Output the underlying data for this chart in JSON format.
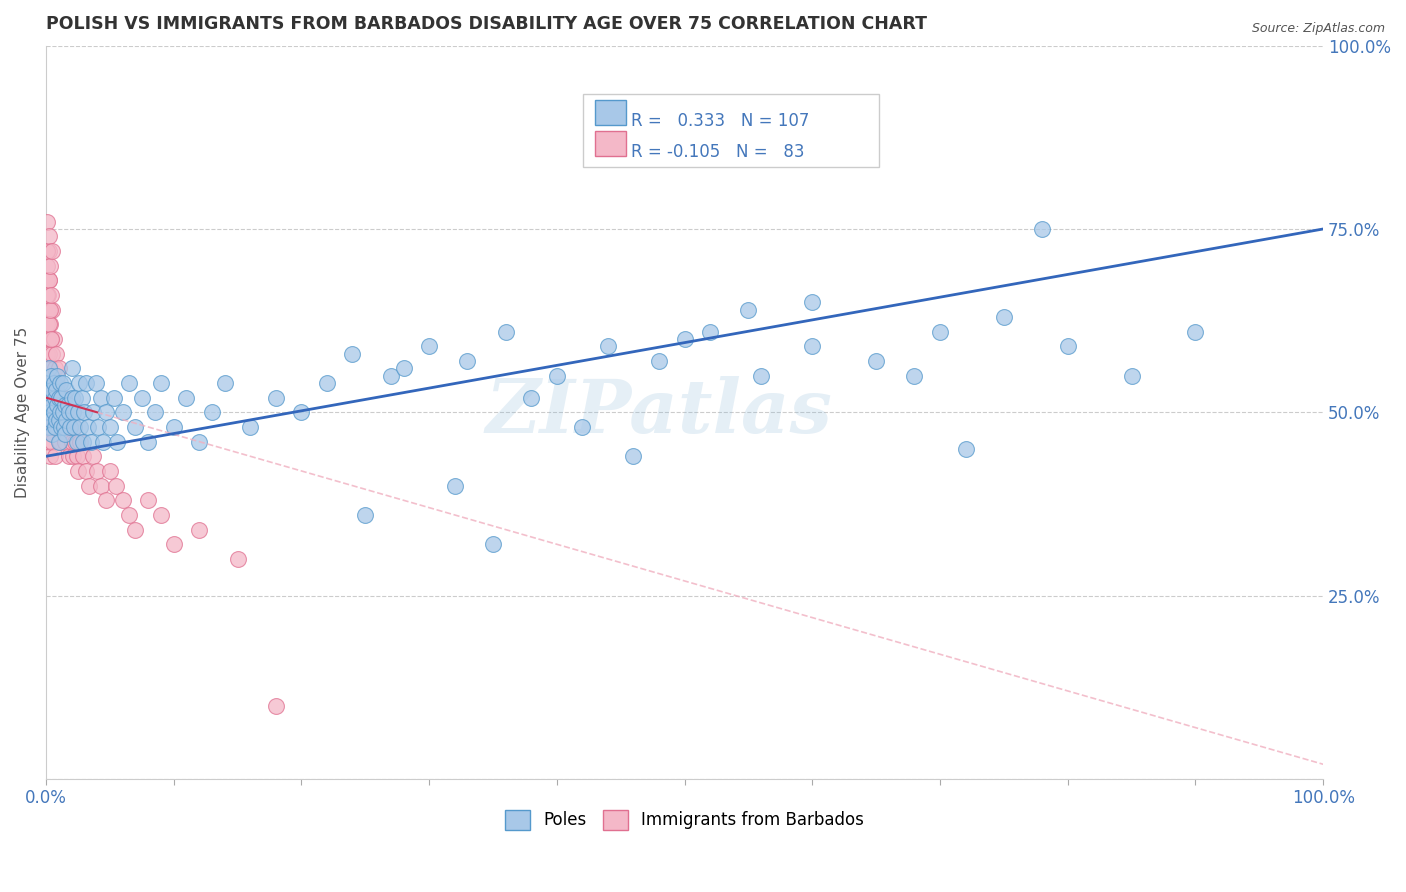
{
  "title": "POLISH VS IMMIGRANTS FROM BARBADOS DISABILITY AGE OVER 75 CORRELATION CHART",
  "source": "Source: ZipAtlas.com",
  "ylabel": "Disability Age Over 75",
  "xlim": [
    0,
    1.0
  ],
  "ylim": [
    0,
    1.0
  ],
  "x_ticks": [
    0.0,
    0.1,
    0.2,
    0.3,
    0.4,
    0.5,
    0.6,
    0.7,
    0.8,
    0.9,
    1.0
  ],
  "y_ticks_right": [
    0.25,
    0.5,
    0.75,
    1.0
  ],
  "poles_R": 0.333,
  "poles_N": 107,
  "barbados_R": -0.105,
  "barbados_N": 83,
  "legend_label_poles": "Poles",
  "legend_label_barbados": "Immigrants from Barbados",
  "poles_color": "#a8c8e8",
  "poles_edge_color": "#5599cc",
  "barbados_color": "#f4b8c8",
  "barbados_edge_color": "#e07090",
  "trend_poles_color": "#3366bb",
  "trend_barbados_solid_color": "#cc3355",
  "trend_barbados_dash_color": "#f0b0c0",
  "watermark": "ZIPatlas",
  "title_color": "#333333",
  "axis_label_color": "#4477bb",
  "poles_x": [
    0.001,
    0.001,
    0.002,
    0.002,
    0.002,
    0.003,
    0.003,
    0.004,
    0.004,
    0.005,
    0.005,
    0.005,
    0.006,
    0.006,
    0.007,
    0.007,
    0.008,
    0.008,
    0.009,
    0.009,
    0.01,
    0.01,
    0.01,
    0.011,
    0.011,
    0.012,
    0.012,
    0.013,
    0.013,
    0.014,
    0.015,
    0.015,
    0.016,
    0.016,
    0.017,
    0.018,
    0.019,
    0.02,
    0.02,
    0.021,
    0.022,
    0.023,
    0.024,
    0.025,
    0.026,
    0.027,
    0.028,
    0.029,
    0.03,
    0.031,
    0.033,
    0.035,
    0.037,
    0.039,
    0.041,
    0.043,
    0.045,
    0.047,
    0.05,
    0.053,
    0.056,
    0.06,
    0.065,
    0.07,
    0.075,
    0.08,
    0.085,
    0.09,
    0.1,
    0.11,
    0.12,
    0.13,
    0.14,
    0.16,
    0.18,
    0.2,
    0.22,
    0.24,
    0.27,
    0.3,
    0.33,
    0.36,
    0.4,
    0.44,
    0.48,
    0.52,
    0.56,
    0.6,
    0.65,
    0.7,
    0.75,
    0.8,
    0.85,
    0.9,
    0.38,
    0.28,
    0.5,
    0.42,
    0.55,
    0.46,
    0.32,
    0.25,
    0.35,
    0.6,
    0.68,
    0.72,
    0.78
  ],
  "poles_y": [
    0.5,
    0.54,
    0.48,
    0.52,
    0.56,
    0.5,
    0.53,
    0.49,
    0.55,
    0.51,
    0.47,
    0.53,
    0.5,
    0.54,
    0.48,
    0.52,
    0.49,
    0.53,
    0.51,
    0.55,
    0.49,
    0.52,
    0.46,
    0.5,
    0.54,
    0.48,
    0.52,
    0.5,
    0.54,
    0.48,
    0.51,
    0.47,
    0.53,
    0.49,
    0.51,
    0.5,
    0.48,
    0.52,
    0.56,
    0.5,
    0.48,
    0.52,
    0.46,
    0.5,
    0.54,
    0.48,
    0.52,
    0.46,
    0.5,
    0.54,
    0.48,
    0.46,
    0.5,
    0.54,
    0.48,
    0.52,
    0.46,
    0.5,
    0.48,
    0.52,
    0.46,
    0.5,
    0.54,
    0.48,
    0.52,
    0.46,
    0.5,
    0.54,
    0.48,
    0.52,
    0.46,
    0.5,
    0.54,
    0.48,
    0.52,
    0.5,
    0.54,
    0.58,
    0.55,
    0.59,
    0.57,
    0.61,
    0.55,
    0.59,
    0.57,
    0.61,
    0.55,
    0.59,
    0.57,
    0.61,
    0.63,
    0.59,
    0.55,
    0.61,
    0.52,
    0.56,
    0.6,
    0.48,
    0.64,
    0.44,
    0.4,
    0.36,
    0.32,
    0.65,
    0.55,
    0.45,
    0.75
  ],
  "barbados_x": [
    0.0005,
    0.0005,
    0.001,
    0.001,
    0.001,
    0.001,
    0.0015,
    0.0015,
    0.002,
    0.002,
    0.002,
    0.002,
    0.002,
    0.0025,
    0.003,
    0.003,
    0.003,
    0.003,
    0.004,
    0.004,
    0.004,
    0.005,
    0.005,
    0.005,
    0.005,
    0.006,
    0.006,
    0.006,
    0.007,
    0.007,
    0.007,
    0.008,
    0.008,
    0.009,
    0.009,
    0.01,
    0.01,
    0.011,
    0.011,
    0.012,
    0.013,
    0.014,
    0.015,
    0.016,
    0.017,
    0.018,
    0.019,
    0.02,
    0.021,
    0.022,
    0.023,
    0.024,
    0.025,
    0.027,
    0.029,
    0.031,
    0.034,
    0.037,
    0.04,
    0.043,
    0.047,
    0.05,
    0.055,
    0.06,
    0.065,
    0.07,
    0.08,
    0.09,
    0.1,
    0.12,
    0.15,
    0.18,
    0.001,
    0.001,
    0.001,
    0.002,
    0.002,
    0.002,
    0.003,
    0.003,
    0.004,
    0.004,
    0.005
  ],
  "barbados_y": [
    0.68,
    0.62,
    0.7,
    0.64,
    0.58,
    0.52,
    0.66,
    0.6,
    0.72,
    0.64,
    0.58,
    0.52,
    0.46,
    0.68,
    0.62,
    0.56,
    0.5,
    0.44,
    0.6,
    0.54,
    0.48,
    0.64,
    0.58,
    0.52,
    0.46,
    0.6,
    0.54,
    0.48,
    0.56,
    0.5,
    0.44,
    0.58,
    0.52,
    0.54,
    0.48,
    0.56,
    0.5,
    0.52,
    0.46,
    0.5,
    0.48,
    0.52,
    0.46,
    0.5,
    0.48,
    0.44,
    0.48,
    0.46,
    0.44,
    0.48,
    0.46,
    0.44,
    0.42,
    0.46,
    0.44,
    0.42,
    0.4,
    0.44,
    0.42,
    0.4,
    0.38,
    0.42,
    0.4,
    0.38,
    0.36,
    0.34,
    0.38,
    0.36,
    0.32,
    0.34,
    0.3,
    0.1,
    0.76,
    0.72,
    0.66,
    0.74,
    0.68,
    0.62,
    0.7,
    0.64,
    0.66,
    0.6,
    0.72
  ],
  "poles_trend_y0": 0.44,
  "poles_trend_y1": 0.75,
  "barbados_trend_y0": 0.52,
  "barbados_trend_y1": 0.02
}
